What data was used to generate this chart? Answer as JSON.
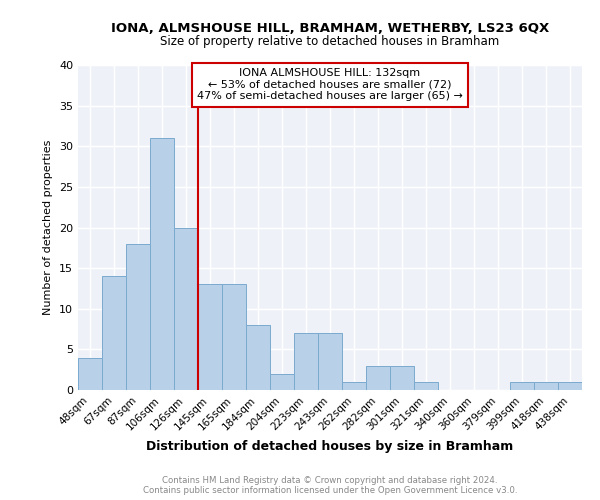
{
  "title1": "IONA, ALMSHOUSE HILL, BRAMHAM, WETHERBY, LS23 6QX",
  "title2": "Size of property relative to detached houses in Bramham",
  "xlabel": "Distribution of detached houses by size in Bramham",
  "ylabel": "Number of detached properties",
  "bar_labels": [
    "48sqm",
    "67sqm",
    "87sqm",
    "106sqm",
    "126sqm",
    "145sqm",
    "165sqm",
    "184sqm",
    "204sqm",
    "223sqm",
    "243sqm",
    "262sqm",
    "282sqm",
    "301sqm",
    "321sqm",
    "340sqm",
    "360sqm",
    "379sqm",
    "399sqm",
    "418sqm",
    "438sqm"
  ],
  "bar_values": [
    4,
    14,
    18,
    31,
    20,
    13,
    13,
    8,
    2,
    7,
    7,
    1,
    3,
    3,
    1,
    0,
    0,
    0,
    1,
    1,
    1
  ],
  "bar_color": "#b8d0e8",
  "bar_edge_color": "#7aaace",
  "property_label": "IONA ALMSHOUSE HILL: 132sqm",
  "annotation_line1": "← 53% of detached houses are smaller (72)",
  "annotation_line2": "47% of semi-detached houses are larger (65) →",
  "vline_color": "#cc0000",
  "vline_position": 4.5,
  "annotation_box_color": "#cc0000",
  "background_color": "#eef2f8",
  "grid_color": "#ffffff",
  "ylim": [
    0,
    40
  ],
  "yticks": [
    0,
    5,
    10,
    15,
    20,
    25,
    30,
    35,
    40
  ],
  "footer_line1": "Contains HM Land Registry data © Crown copyright and database right 2024.",
  "footer_line2": "Contains public sector information licensed under the Open Government Licence v3.0."
}
